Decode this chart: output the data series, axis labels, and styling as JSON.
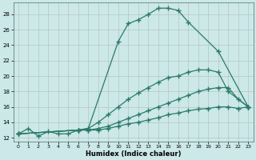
{
  "xlabel": "Humidex (Indice chaleur)",
  "bg_color": "#cce8e8",
  "line_color": "#2a7a6a",
  "grid_color": "#aaaaaa",
  "xlim": [
    -0.5,
    23.5
  ],
  "ylim": [
    11.5,
    29.5
  ],
  "yticks": [
    12,
    14,
    16,
    18,
    20,
    22,
    24,
    26,
    28
  ],
  "xticks": [
    0,
    1,
    2,
    3,
    4,
    5,
    6,
    7,
    8,
    9,
    10,
    11,
    12,
    13,
    14,
    15,
    16,
    17,
    18,
    19,
    20,
    21,
    22,
    23
  ],
  "lines": [
    {
      "x": [
        0,
        1,
        2,
        3,
        4,
        5,
        6,
        7,
        10,
        11,
        12,
        13,
        14,
        15,
        16,
        17,
        20,
        23
      ],
      "y": [
        12.5,
        13.2,
        12.2,
        12.8,
        12.5,
        12.5,
        13.0,
        13.2,
        24.5,
        26.8,
        27.3,
        28.0,
        28.8,
        28.8,
        28.5,
        27.0,
        23.2,
        16.0
      ],
      "marker": "+",
      "markersize": 4,
      "linewidth": 0.9
    },
    {
      "x": [
        0,
        6,
        7,
        8,
        9,
        10,
        11,
        12,
        13,
        14,
        15,
        16,
        17,
        18,
        19,
        20,
        21,
        23
      ],
      "y": [
        12.5,
        13.0,
        13.2,
        14.0,
        15.0,
        16.0,
        17.0,
        17.8,
        18.5,
        19.2,
        19.8,
        20.0,
        20.5,
        20.8,
        20.8,
        20.5,
        18.0,
        16.0
      ],
      "marker": "+",
      "markersize": 4,
      "linewidth": 0.9
    },
    {
      "x": [
        0,
        6,
        7,
        8,
        9,
        10,
        11,
        12,
        13,
        14,
        15,
        16,
        17,
        18,
        19,
        20,
        21,
        22,
        23
      ],
      "y": [
        12.5,
        13.0,
        13.0,
        13.2,
        13.5,
        14.0,
        14.5,
        15.0,
        15.5,
        16.0,
        16.5,
        17.0,
        17.5,
        18.0,
        18.3,
        18.5,
        18.5,
        17.0,
        16.0
      ],
      "marker": "+",
      "markersize": 4,
      "linewidth": 0.9
    },
    {
      "x": [
        0,
        6,
        7,
        8,
        9,
        10,
        11,
        12,
        13,
        14,
        15,
        16,
        17,
        18,
        19,
        20,
        21,
        22,
        23
      ],
      "y": [
        12.5,
        13.0,
        13.0,
        13.0,
        13.2,
        13.5,
        13.8,
        14.0,
        14.3,
        14.6,
        15.0,
        15.2,
        15.5,
        15.7,
        15.8,
        16.0,
        16.0,
        15.8,
        16.0
      ],
      "marker": "+",
      "markersize": 4,
      "linewidth": 0.9
    }
  ]
}
